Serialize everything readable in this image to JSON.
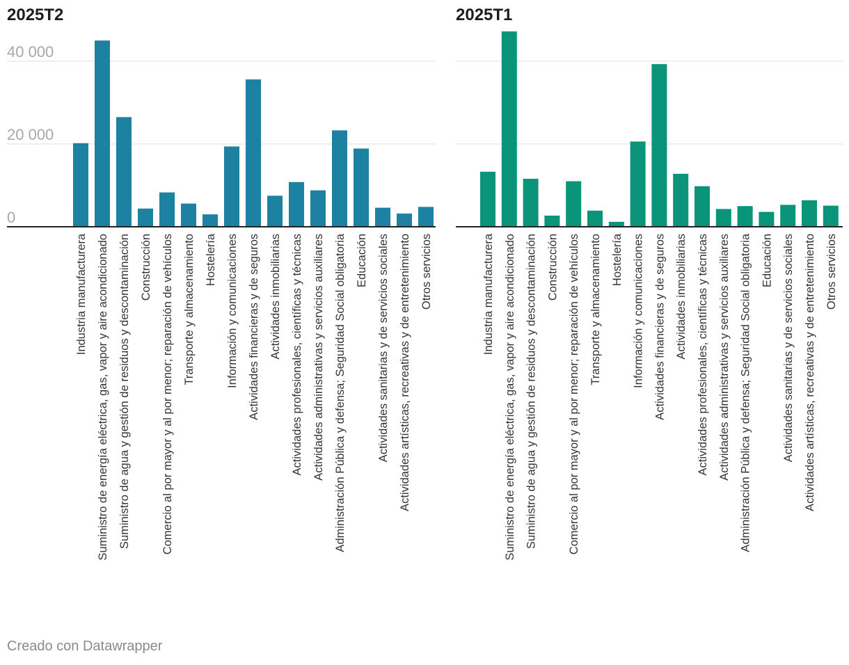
{
  "footer": "Creado con Datawrapper",
  "chart_data": [
    {
      "type": "bar",
      "title": "2025T2",
      "color": "#1d81a2",
      "ylim": [
        0,
        40000
      ],
      "yticks": [
        0,
        20000,
        40000
      ],
      "ytick_labels": [
        "0",
        "20 000",
        "40 000"
      ],
      "show_tick_labels": true,
      "grid": true,
      "categories": [
        "Industria manufacturera",
        "Suministro de energía eléctrica, gas, vapor y aire acondicionado",
        "Suministro de agua y gestión de residuos y descontaminación",
        "Construcción",
        "Comercio al por mayor y al por menor; reparación de vehículos",
        "Transporte y almacenamiento",
        "Hostelería",
        "Información y comunicaciones",
        "Actividades financieras y de seguros",
        "Actividades inmobiliarias",
        "Actividades profesionales, científicas y técnicas",
        "Actividades administrativas y servicios auxiliares",
        "Administración Pública y defensa; Seguridad Social obligatoria",
        "Educación",
        "Actividades sanitarias y de servicios sociales",
        "Actividades artísticas, recreativas y de entretenimiento",
        "Otros servicios"
      ],
      "values": [
        20200,
        45000,
        26500,
        4400,
        8300,
        5600,
        3000,
        19400,
        35600,
        7500,
        10800,
        8800,
        23300,
        18900,
        4600,
        3200,
        4800
      ]
    },
    {
      "type": "bar",
      "title": "2025T1",
      "color": "#0a9479",
      "ylim": [
        0,
        40000
      ],
      "yticks": [
        0,
        20000,
        40000
      ],
      "ytick_labels": [
        "0",
        "20 000",
        "40 000"
      ],
      "show_tick_labels": false,
      "grid": true,
      "categories": [
        "Industria manufacturera",
        "Suministro de energía eléctrica, gas, vapor y aire acondicionado",
        "Suministro de agua y gestión de residuos y descontaminación",
        "Construcción",
        "Comercio al por mayor y al por menor; reparación de vehículos",
        "Transporte y almacenamiento",
        "Hostelería",
        "Información y comunicaciones",
        "Actividades financieras y de seguros",
        "Actividades inmobiliarias",
        "Actividades profesionales, científicas y técnicas",
        "Actividades administrativas y servicios auxiliares",
        "Administración Pública y defensa; Seguridad Social obligatoria",
        "Educación",
        "Actividades sanitarias y de servicios sociales",
        "Actividades artísticas, recreativas y de entretenimiento",
        "Otros servicios"
      ],
      "values": [
        13300,
        47200,
        11600,
        2700,
        11000,
        3900,
        1200,
        20600,
        39300,
        12800,
        9800,
        4300,
        5000,
        3600,
        5300,
        6400,
        5100
      ]
    }
  ]
}
